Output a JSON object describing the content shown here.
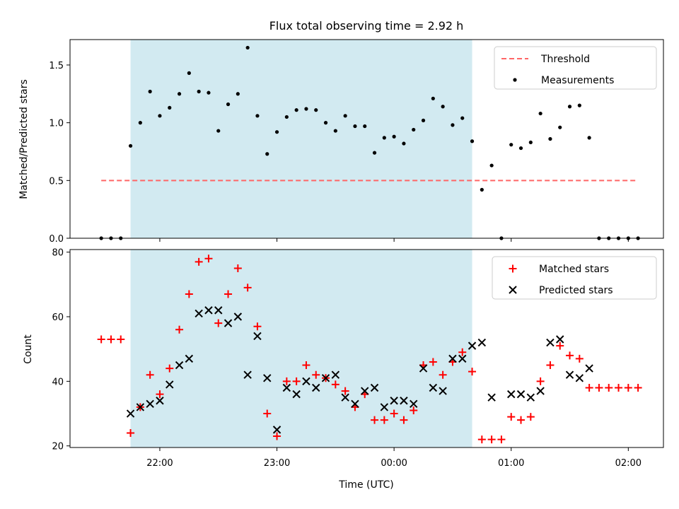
{
  "chart_data": [
    {
      "type": "scatter",
      "title": "Flux total observing time = 2.92 h",
      "xlabel": "",
      "ylabel": "Matched/Predicted stars",
      "ylim": [
        0,
        1.72
      ],
      "yticks": [
        0.0,
        0.5,
        1.0,
        1.5
      ],
      "ytick_labels": [
        "0.0",
        "0.5",
        "1.0",
        "1.5"
      ],
      "highlight_span": {
        "start": "21:45",
        "end": "00:40",
        "color": "#add8e6"
      },
      "threshold": {
        "name": "Threshold",
        "y": 0.5,
        "x_start": "21:30",
        "x_end": "02:05",
        "color": "#ff6666"
      },
      "legend": {
        "position": "top-right",
        "entries": [
          "Threshold",
          "Measurements"
        ]
      },
      "series": [
        {
          "name": "Measurements",
          "color": "#000000",
          "marker": "dot",
          "points": [
            [
              "21:30",
              0.0
            ],
            [
              "21:35",
              0.0
            ],
            [
              "21:40",
              0.0
            ],
            [
              "21:45",
              0.8
            ],
            [
              "21:50",
              1.0
            ],
            [
              "21:55",
              1.27
            ],
            [
              "22:00",
              1.06
            ],
            [
              "22:05",
              1.13
            ],
            [
              "22:10",
              1.25
            ],
            [
              "22:15",
              1.43
            ],
            [
              "22:20",
              1.27
            ],
            [
              "22:25",
              1.26
            ],
            [
              "22:30",
              0.93
            ],
            [
              "22:35",
              1.16
            ],
            [
              "22:40",
              1.25
            ],
            [
              "22:45",
              1.65
            ],
            [
              "22:50",
              1.06
            ],
            [
              "22:55",
              0.73
            ],
            [
              "23:00",
              0.92
            ],
            [
              "23:05",
              1.05
            ],
            [
              "23:10",
              1.11
            ],
            [
              "23:15",
              1.12
            ],
            [
              "23:20",
              1.11
            ],
            [
              "23:25",
              1.0
            ],
            [
              "23:30",
              0.93
            ],
            [
              "23:35",
              1.06
            ],
            [
              "23:40",
              0.97
            ],
            [
              "23:45",
              0.97
            ],
            [
              "23:50",
              0.74
            ],
            [
              "23:55",
              0.87
            ],
            [
              "00:00",
              0.88
            ],
            [
              "00:05",
              0.82
            ],
            [
              "00:10",
              0.94
            ],
            [
              "00:15",
              1.02
            ],
            [
              "00:20",
              1.21
            ],
            [
              "00:25",
              1.14
            ],
            [
              "00:30",
              0.98
            ],
            [
              "00:35",
              1.04
            ],
            [
              "00:40",
              0.84
            ],
            [
              "00:45",
              0.42
            ],
            [
              "00:50",
              0.63
            ],
            [
              "00:55",
              0.0
            ],
            [
              "01:00",
              0.81
            ],
            [
              "01:05",
              0.78
            ],
            [
              "01:10",
              0.83
            ],
            [
              "01:15",
              1.08
            ],
            [
              "01:20",
              0.86
            ],
            [
              "01:25",
              0.96
            ],
            [
              "01:30",
              1.14
            ],
            [
              "01:35",
              1.15
            ],
            [
              "01:40",
              0.87
            ],
            [
              "01:45",
              0.0
            ],
            [
              "01:50",
              0.0
            ],
            [
              "01:55",
              0.0
            ],
            [
              "02:00",
              0.0
            ],
            [
              "02:05",
              0.0
            ]
          ]
        }
      ]
    },
    {
      "type": "scatter",
      "title": "",
      "xlabel": "Time (UTC)",
      "ylabel": "Count",
      "ylim": [
        19.5,
        80.8
      ],
      "yticks": [
        20,
        40,
        60,
        80
      ],
      "ytick_labels": [
        "20",
        "40",
        "60",
        "80"
      ],
      "xticks": [
        "22:00",
        "23:00",
        "00:00",
        "01:00",
        "02:00"
      ],
      "xtick_labels": [
        "22:00",
        "23:00",
        "00:00",
        "01:00",
        "02:00"
      ],
      "highlight_span": {
        "start": "21:45",
        "end": "00:40",
        "color": "#add8e6"
      },
      "legend": {
        "position": "top-right",
        "entries": [
          "Matched stars",
          "Predicted stars"
        ]
      },
      "series": [
        {
          "name": "Matched stars",
          "color": "#ff0000",
          "marker": "plus",
          "points": [
            [
              "21:30",
              53
            ],
            [
              "21:35",
              53
            ],
            [
              "21:40",
              53
            ],
            [
              "21:45",
              24
            ],
            [
              "21:50",
              32
            ],
            [
              "21:55",
              42
            ],
            [
              "22:00",
              36
            ],
            [
              "22:05",
              44
            ],
            [
              "22:10",
              56
            ],
            [
              "22:15",
              67
            ],
            [
              "22:20",
              77
            ],
            [
              "22:25",
              78
            ],
            [
              "22:30",
              58
            ],
            [
              "22:35",
              67
            ],
            [
              "22:40",
              75
            ],
            [
              "22:45",
              69
            ],
            [
              "22:50",
              57
            ],
            [
              "22:55",
              30
            ],
            [
              "23:00",
              23
            ],
            [
              "23:05",
              40
            ],
            [
              "23:10",
              40
            ],
            [
              "23:15",
              45
            ],
            [
              "23:20",
              42
            ],
            [
              "23:25",
              41
            ],
            [
              "23:30",
              39
            ],
            [
              "23:35",
              37
            ],
            [
              "23:40",
              32
            ],
            [
              "23:45",
              36
            ],
            [
              "23:50",
              28
            ],
            [
              "23:55",
              28
            ],
            [
              "00:00",
              30
            ],
            [
              "00:05",
              28
            ],
            [
              "00:10",
              31
            ],
            [
              "00:15",
              45
            ],
            [
              "00:20",
              46
            ],
            [
              "00:25",
              42
            ],
            [
              "00:30",
              46
            ],
            [
              "00:35",
              49
            ],
            [
              "00:40",
              43
            ],
            [
              "00:45",
              22
            ],
            [
              "00:50",
              22
            ],
            [
              "00:55",
              22
            ],
            [
              "01:00",
              29
            ],
            [
              "01:05",
              28
            ],
            [
              "01:10",
              29
            ],
            [
              "01:15",
              40
            ],
            [
              "01:20",
              45
            ],
            [
              "01:25",
              51
            ],
            [
              "01:30",
              48
            ],
            [
              "01:35",
              47
            ],
            [
              "01:40",
              38
            ],
            [
              "01:45",
              38
            ],
            [
              "01:50",
              38
            ],
            [
              "01:55",
              38
            ],
            [
              "02:00",
              38
            ],
            [
              "02:05",
              38
            ]
          ]
        },
        {
          "name": "Predicted stars",
          "color": "#000000",
          "marker": "x",
          "points": [
            [
              "21:45",
              30
            ],
            [
              "21:50",
              32
            ],
            [
              "21:55",
              33
            ],
            [
              "22:00",
              34
            ],
            [
              "22:05",
              39
            ],
            [
              "22:10",
              45
            ],
            [
              "22:15",
              47
            ],
            [
              "22:20",
              61
            ],
            [
              "22:25",
              62
            ],
            [
              "22:30",
              62
            ],
            [
              "22:35",
              58
            ],
            [
              "22:40",
              60
            ],
            [
              "22:45",
              42
            ],
            [
              "22:50",
              54
            ],
            [
              "22:55",
              41
            ],
            [
              "23:00",
              25
            ],
            [
              "23:05",
              38
            ],
            [
              "23:10",
              36
            ],
            [
              "23:15",
              40
            ],
            [
              "23:20",
              38
            ],
            [
              "23:25",
              41
            ],
            [
              "23:30",
              42
            ],
            [
              "23:35",
              35
            ],
            [
              "23:40",
              33
            ],
            [
              "23:45",
              37
            ],
            [
              "23:50",
              38
            ],
            [
              "23:55",
              32
            ],
            [
              "00:00",
              34
            ],
            [
              "00:05",
              34
            ],
            [
              "00:10",
              33
            ],
            [
              "00:15",
              44
            ],
            [
              "00:20",
              38
            ],
            [
              "00:25",
              37
            ],
            [
              "00:30",
              47
            ],
            [
              "00:35",
              47
            ],
            [
              "00:40",
              51
            ],
            [
              "00:45",
              52
            ],
            [
              "00:50",
              35
            ],
            [
              "01:00",
              36
            ],
            [
              "01:05",
              36
            ],
            [
              "01:10",
              35
            ],
            [
              "01:15",
              37
            ],
            [
              "01:20",
              52
            ],
            [
              "01:25",
              53
            ],
            [
              "01:30",
              42
            ],
            [
              "01:35",
              41
            ],
            [
              "01:40",
              44
            ]
          ]
        }
      ]
    }
  ]
}
